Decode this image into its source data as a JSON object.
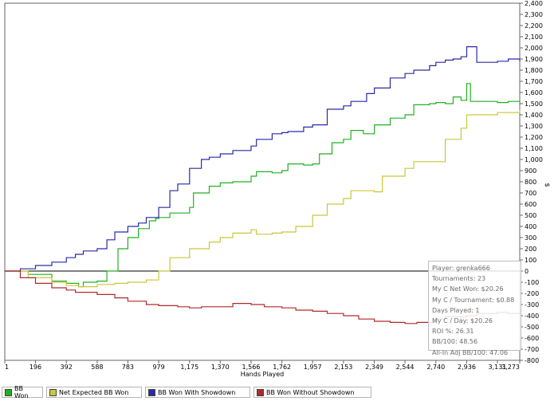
{
  "chart_data": {
    "type": "line",
    "xlabel": "Hands Played",
    "ylabel": "$",
    "xlim": [
      1,
      3273
    ],
    "ylim": [
      -800,
      2400
    ],
    "x_ticks": [
      "1",
      "196",
      "392",
      "588",
      "783",
      "979",
      "1,175",
      "1,370",
      "1,566",
      "1,762",
      "1,957",
      "2,153",
      "2,349",
      "2,544",
      "2,740",
      "2,936",
      "3,131",
      "3,273"
    ],
    "x_tick_values": [
      1,
      196,
      392,
      588,
      783,
      979,
      1175,
      1370,
      1566,
      1762,
      1957,
      2153,
      2349,
      2544,
      2740,
      2936,
      3131,
      3273
    ],
    "y_ticks": [
      2400,
      2300,
      2200,
      2100,
      2000,
      1900,
      1800,
      1700,
      1600,
      1500,
      1400,
      1300,
      1200,
      1100,
      1000,
      900,
      800,
      700,
      600,
      500,
      400,
      300,
      200,
      100,
      0,
      -100,
      -200,
      -300,
      -400,
      -500,
      -600,
      -700,
      -800
    ],
    "y_tick_labels": [
      "2,400",
      "2,300",
      "2,200",
      "2,100",
      "2,000",
      "1,900",
      "1,800",
      "1,700",
      "1,600",
      "1,500",
      "1,400",
      "1,300",
      "1,200",
      "1,100",
      "1,000",
      "900",
      "800",
      "700",
      "600",
      "500",
      "400",
      "300",
      "200",
      "100",
      "0",
      "-100",
      "-200",
      "-300",
      "-400",
      "-500",
      "-600",
      "-700",
      "-800"
    ],
    "series": [
      {
        "name": "BB Won",
        "color": "#22b022",
        "x": [
          1,
          150,
          300,
          392,
          470,
          500,
          588,
          650,
          720,
          783,
          850,
          920,
          960,
          979,
          1050,
          1175,
          1200,
          1300,
          1370,
          1450,
          1566,
          1600,
          1700,
          1762,
          1800,
          1900,
          1957,
          2000,
          2080,
          2153,
          2200,
          2280,
          2349,
          2450,
          2544,
          2600,
          2700,
          2740,
          2800,
          2850,
          2900,
          2936,
          2960,
          3050,
          3131,
          3200,
          3273
        ],
        "values": [
          0,
          -30,
          -90,
          -110,
          -140,
          -100,
          -90,
          0,
          200,
          300,
          380,
          450,
          470,
          480,
          520,
          570,
          700,
          760,
          790,
          800,
          850,
          890,
          880,
          900,
          960,
          950,
          960,
          1050,
          1150,
          1180,
          1260,
          1230,
          1310,
          1370,
          1400,
          1490,
          1500,
          1510,
          1500,
          1560,
          1530,
          1680,
          1520,
          1520,
          1510,
          1520,
          1510
        ]
      },
      {
        "name": "Net Expected BB Won",
        "color": "#c8c83a",
        "x": [
          1,
          150,
          300,
          392,
          470,
          588,
          700,
          783,
          900,
          979,
          1050,
          1175,
          1300,
          1370,
          1450,
          1566,
          1600,
          1700,
          1762,
          1850,
          1957,
          2050,
          2153,
          2200,
          2349,
          2400,
          2544,
          2600,
          2740,
          2800,
          2900,
          2936,
          3000,
          3131,
          3273
        ],
        "values": [
          0,
          -60,
          -100,
          -130,
          -140,
          -120,
          -110,
          -100,
          -80,
          0,
          120,
          200,
          260,
          300,
          340,
          370,
          330,
          340,
          350,
          400,
          500,
          600,
          650,
          720,
          710,
          850,
          920,
          980,
          980,
          1180,
          1280,
          1400,
          1400,
          1420,
          1440
        ]
      },
      {
        "name": "BB Won With Showdown",
        "color": "#2a2aa6",
        "x": [
          1,
          100,
          196,
          300,
          392,
          450,
          500,
          588,
          650,
          700,
          783,
          850,
          900,
          979,
          1050,
          1100,
          1175,
          1250,
          1300,
          1370,
          1450,
          1566,
          1600,
          1700,
          1762,
          1800,
          1900,
          1957,
          2050,
          2153,
          2200,
          2300,
          2349,
          2450,
          2544,
          2600,
          2700,
          2740,
          2800,
          2850,
          2900,
          2936,
          3000,
          3131,
          3200,
          3273
        ],
        "values": [
          0,
          20,
          50,
          80,
          120,
          150,
          180,
          200,
          280,
          350,
          400,
          430,
          480,
          570,
          720,
          780,
          920,
          1000,
          1020,
          1050,
          1080,
          1120,
          1180,
          1230,
          1240,
          1250,
          1290,
          1310,
          1450,
          1480,
          1520,
          1590,
          1640,
          1730,
          1770,
          1800,
          1840,
          1870,
          1890,
          1900,
          1920,
          2010,
          1870,
          1880,
          1900,
          1880
        ]
      },
      {
        "name": "BB Won Without Showdown",
        "color": "#b02a2a",
        "x": [
          1,
          100,
          196,
          300,
          392,
          450,
          588,
          700,
          783,
          900,
          979,
          1100,
          1175,
          1250,
          1370,
          1450,
          1566,
          1650,
          1762,
          1850,
          1957,
          2050,
          2153,
          2250,
          2349,
          2450,
          2544,
          2620,
          2740,
          2800,
          2936,
          3000,
          3131,
          3200,
          3273
        ],
        "values": [
          0,
          -60,
          -110,
          -150,
          -170,
          -190,
          -210,
          -240,
          -270,
          -300,
          -310,
          -320,
          -330,
          -320,
          -320,
          -290,
          -300,
          -320,
          -330,
          -350,
          -360,
          -380,
          -400,
          -430,
          -450,
          -460,
          -470,
          -460,
          -430,
          -410,
          -400,
          -380,
          -370,
          -380,
          -360
        ]
      }
    ],
    "legend_position": "bottom-left"
  },
  "legend": {
    "items": [
      {
        "label": "BB Won",
        "color": "#22b022"
      },
      {
        "label": "Net Expected BB Won",
        "color": "#c8c83a"
      },
      {
        "label": "BB Won With Showdown",
        "color": "#2a2aa6"
      },
      {
        "label": "BB Won Without Showdown",
        "color": "#b02a2a"
      }
    ]
  },
  "stats": {
    "player": "Player: grenka666",
    "tournaments": "Tournaments: 23",
    "net_won": "My C Net Won: $20.26",
    "per_tournament": "My C / Tournament: $0.88",
    "days_played": "Days Played: 1",
    "per_day": "My C / Day: $20.26",
    "roi": "ROI %: 26.31",
    "bb100": "BB/100: 48.56",
    "allin_bb100": "All-In Adj BB/100: 47.06"
  }
}
